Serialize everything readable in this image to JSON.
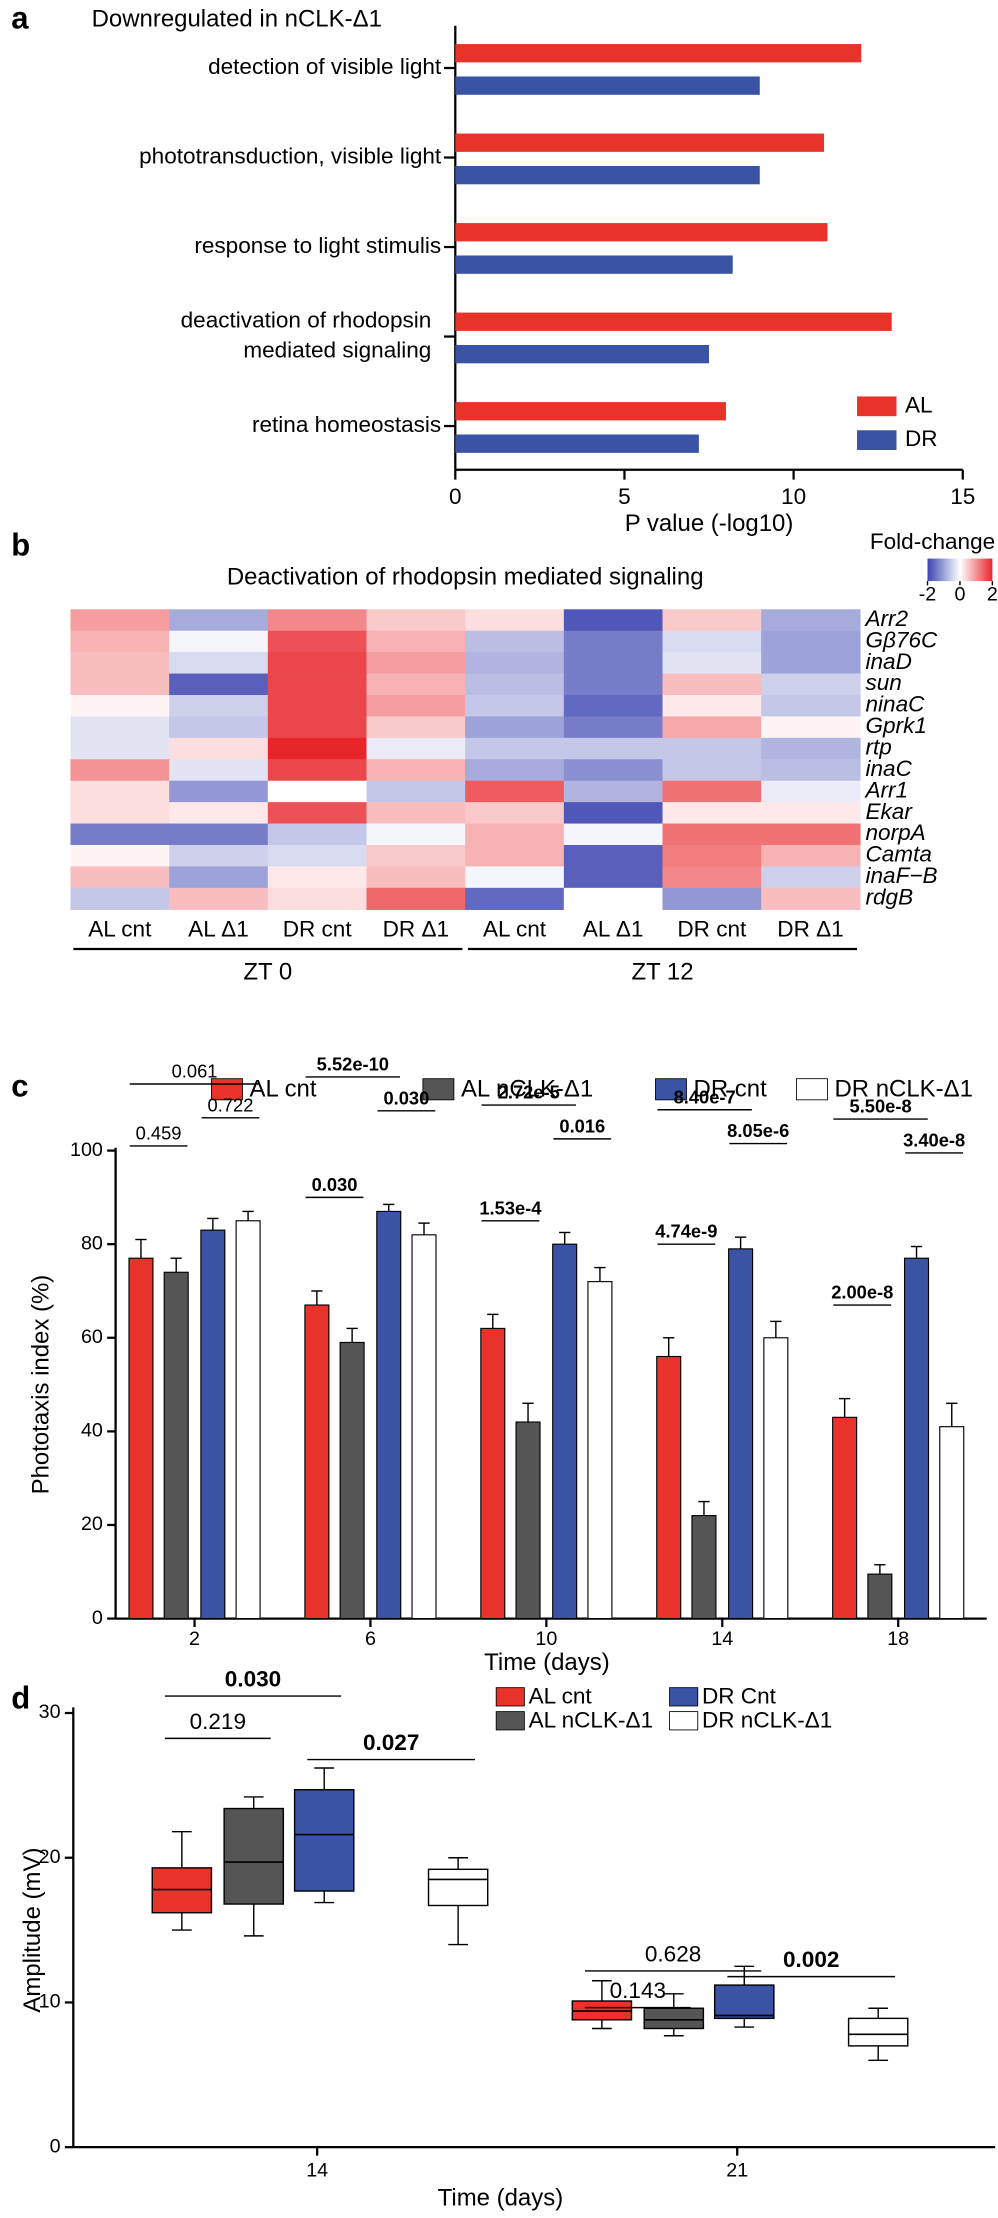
{
  "panel_labels": [
    "a",
    "b",
    "c",
    "d"
  ],
  "chart_data": [
    {
      "type": "hbar",
      "title": "Downregulated in nCLK-Δ1",
      "categories": [
        "detection of visible light",
        "phototransduction, visible light",
        "response to light stimulis",
        [
          "deactivation of rhodopsin",
          "mediated signaling"
        ],
        "retina homeostasis"
      ],
      "series": [
        {
          "name": "AL",
          "color": "#e8332a",
          "values": [
            12,
            10.9,
            11,
            12.9,
            8
          ]
        },
        {
          "name": "DR",
          "color": "#3a53a4",
          "values": [
            9,
            9,
            8.2,
            7.5,
            7.2
          ]
        }
      ],
      "xlim": [
        0,
        15
      ],
      "xticks": [
        0,
        5,
        10,
        15
      ],
      "xlabel": "P value (-log10)",
      "legend": "lower right"
    },
    {
      "type": "heatmap",
      "title": "Deactivation of rhodopsin mediated signaling",
      "columns": [
        "AL cnt",
        "AL Δ1",
        "DR cnt",
        "DR Δ1",
        "AL cnt",
        "AL Δ1",
        "DR cnt",
        "DR Δ1"
      ],
      "column_groups": [
        "ZT 0",
        "ZT 12"
      ],
      "rows": [
        "Arr2",
        "Gβ76C",
        "inaD",
        "sun",
        "ninaC",
        "Gprk1",
        "rtp",
        "inaC",
        "Arr1",
        "Ekar",
        "norpA",
        "Camta",
        "inaF−B",
        "rdgB"
      ],
      "values": [
        [
          0.9,
          -0.9,
          1.1,
          0.5,
          0.3,
          -1.8,
          0.5,
          -0.9
        ],
        [
          0.7,
          -0.1,
          1.6,
          0.7,
          -0.7,
          -1.4,
          -0.4,
          -1.0
        ],
        [
          0.6,
          -0.4,
          1.7,
          0.9,
          -0.8,
          -1.4,
          -0.3,
          -1.0
        ],
        [
          0.6,
          -1.7,
          1.7,
          0.7,
          -0.7,
          -1.4,
          0.6,
          -0.5
        ],
        [
          0.1,
          -0.5,
          1.7,
          0.9,
          -0.6,
          -1.6,
          0.2,
          -0.6
        ],
        [
          -0.3,
          -0.6,
          1.7,
          0.5,
          -1.0,
          -1.4,
          0.8,
          0.1
        ],
        [
          -0.3,
          0.3,
          2.0,
          -0.2,
          -0.6,
          -0.6,
          -0.6,
          -0.8
        ],
        [
          1.0,
          -0.3,
          1.7,
          0.7,
          -0.9,
          -1.2,
          -0.6,
          -0.7
        ],
        [
          0.3,
          -1.1,
          0.0,
          -0.6,
          1.5,
          -0.8,
          1.3,
          -0.2
        ],
        [
          0.3,
          0.2,
          1.6,
          0.6,
          0.5,
          -1.8,
          0.2,
          0.2
        ],
        [
          -1.4,
          -1.4,
          -0.6,
          -0.1,
          0.7,
          -0.1,
          1.3,
          1.3
        ],
        [
          0.1,
          -0.5,
          -0.4,
          0.5,
          0.7,
          -1.7,
          1.2,
          0.7
        ],
        [
          0.6,
          -1.0,
          0.2,
          0.6,
          -0.1,
          -1.7,
          1.1,
          -0.5
        ],
        [
          -0.6,
          0.6,
          0.3,
          1.4,
          -1.6,
          0.0,
          -1.1,
          0.6
        ]
      ],
      "colorbar": {
        "label": "Fold-change",
        "lim": [
          -2,
          2
        ],
        "ticks": [
          -2,
          0,
          2
        ],
        "colors": [
          "#3b44b0",
          "#ffffff",
          "#e8262a"
        ]
      }
    },
    {
      "type": "bar",
      "categories": [
        2,
        6,
        10,
        14,
        18
      ],
      "series": [
        {
          "name": "AL cnt",
          "color": "#e8332a",
          "values": [
            77,
            67,
            62,
            56,
            43
          ],
          "errors": [
            4,
            3,
            3,
            4,
            4
          ]
        },
        {
          "name": "AL nCLK-Δ1",
          "color": "#555555",
          "values": [
            74,
            59,
            42,
            22,
            9.5
          ],
          "errors": [
            3,
            3,
            4,
            3,
            2
          ]
        },
        {
          "name": "DR cnt",
          "color": "#3a53a4",
          "values": [
            83,
            87,
            80,
            79,
            77
          ],
          "errors": [
            2.5,
            1.5,
            2.5,
            2.5,
            2.5
          ]
        },
        {
          "name": "DR nCLK-Δ1",
          "color": "#ffffff",
          "values": [
            85,
            82,
            72,
            60,
            41
          ],
          "errors": [
            2,
            2.5,
            3,
            3.5,
            5
          ]
        }
      ],
      "ylim": [
        0,
        100
      ],
      "yticks": [
        0,
        20,
        40,
        60,
        80,
        100
      ],
      "ylabel": "Phototaxis index (%)",
      "xlabel": "Time (days)",
      "annotations": [
        [
          {
            "text": "0.459",
            "bold": false,
            "pair": [
              0,
              1
            ]
          },
          {
            "text": "0.722",
            "bold": false,
            "pair": [
              2,
              3
            ]
          },
          {
            "text": "0.061",
            "bold": false,
            "pair": [
              0,
              3
            ]
          }
        ],
        [
          {
            "text": "0.030",
            "bold": true,
            "pair": [
              0,
              1
            ]
          },
          {
            "text": "0.030",
            "bold": true,
            "pair": [
              2,
              3
            ]
          },
          {
            "text": "5.52e-10",
            "bold": true,
            "pair": [
              0,
              2
            ]
          }
        ],
        [
          {
            "text": "1.53e-4",
            "bold": true,
            "pair": [
              0,
              1
            ]
          },
          {
            "text": "0.016",
            "bold": true,
            "pair": [
              2,
              3
            ]
          },
          {
            "text": "2.72e-5",
            "bold": true,
            "pair": [
              0,
              2
            ]
          }
        ],
        [
          {
            "text": "4.74e-9",
            "bold": true,
            "pair": [
              0,
              1
            ]
          },
          {
            "text": "8.05e-6",
            "bold": true,
            "pair": [
              2,
              3
            ]
          },
          {
            "text": "8.40e-7",
            "bold": true,
            "pair": [
              0,
              2
            ]
          }
        ],
        [
          {
            "text": "2.00e-8",
            "bold": true,
            "pair": [
              0,
              1
            ]
          },
          {
            "text": "3.40e-8",
            "bold": true,
            "pair": [
              2,
              3
            ]
          },
          {
            "text": "5.50e-8",
            "bold": true,
            "pair": [
              0,
              2
            ]
          }
        ]
      ]
    },
    {
      "type": "box",
      "categories": [
        14,
        21
      ],
      "series": [
        {
          "name": "AL cnt",
          "color": "#e8332a",
          "boxes": [
            {
              "min": 15,
              "q1": 16.2,
              "median": 17.8,
              "q3": 19.3,
              "max": 21.8
            },
            {
              "min": 8.2,
              "q1": 8.8,
              "median": 9.4,
              "q3": 10.1,
              "max": 11.5
            }
          ]
        },
        {
          "name": "AL nCLK-Δ1",
          "color": "#555555",
          "boxes": [
            {
              "min": 14.6,
              "q1": 16.8,
              "median": 19.7,
              "q3": 23.4,
              "max": 24.2
            },
            {
              "min": 7.7,
              "q1": 8.2,
              "median": 8.8,
              "q3": 9.6,
              "max": 10.6
            }
          ]
        },
        {
          "name": "DR Cnt",
          "color": "#3a53a4",
          "boxes": [
            {
              "min": 16.9,
              "q1": 17.7,
              "median": 21.6,
              "q3": 24.7,
              "max": 26.2
            },
            {
              "min": 8.3,
              "q1": 8.9,
              "median": 9.1,
              "q3": 11.2,
              "max": 12.5
            }
          ]
        },
        {
          "name": "DR nCLK-Δ1",
          "color": "#ffffff",
          "boxes": [
            {
              "min": 14,
              "q1": 16.7,
              "median": 18.5,
              "q3": 19.2,
              "max": 20
            },
            {
              "min": 6,
              "q1": 7.0,
              "median": 7.8,
              "q3": 8.9,
              "max": 9.6
            }
          ]
        }
      ],
      "ylim": [
        0,
        30
      ],
      "yticks": [
        0,
        10,
        20,
        30
      ],
      "ylabel": "Amplitude (mV)",
      "xlabel": "Time (days)",
      "annotations": [
        [
          {
            "text": "0.219",
            "bold": false,
            "pair": [
              0,
              1
            ]
          },
          {
            "text": "0.030",
            "bold": true,
            "pair": [
              0,
              2
            ]
          },
          {
            "text": "0.027",
            "bold": true,
            "pair": [
              2,
              3
            ]
          }
        ],
        [
          {
            "text": "0.143",
            "bold": false,
            "pair": [
              0,
              1
            ]
          },
          {
            "text": "0.628",
            "bold": false,
            "pair": [
              0,
              2
            ]
          },
          {
            "text": "0.002",
            "bold": true,
            "pair": [
              2,
              3
            ]
          }
        ]
      ]
    }
  ]
}
